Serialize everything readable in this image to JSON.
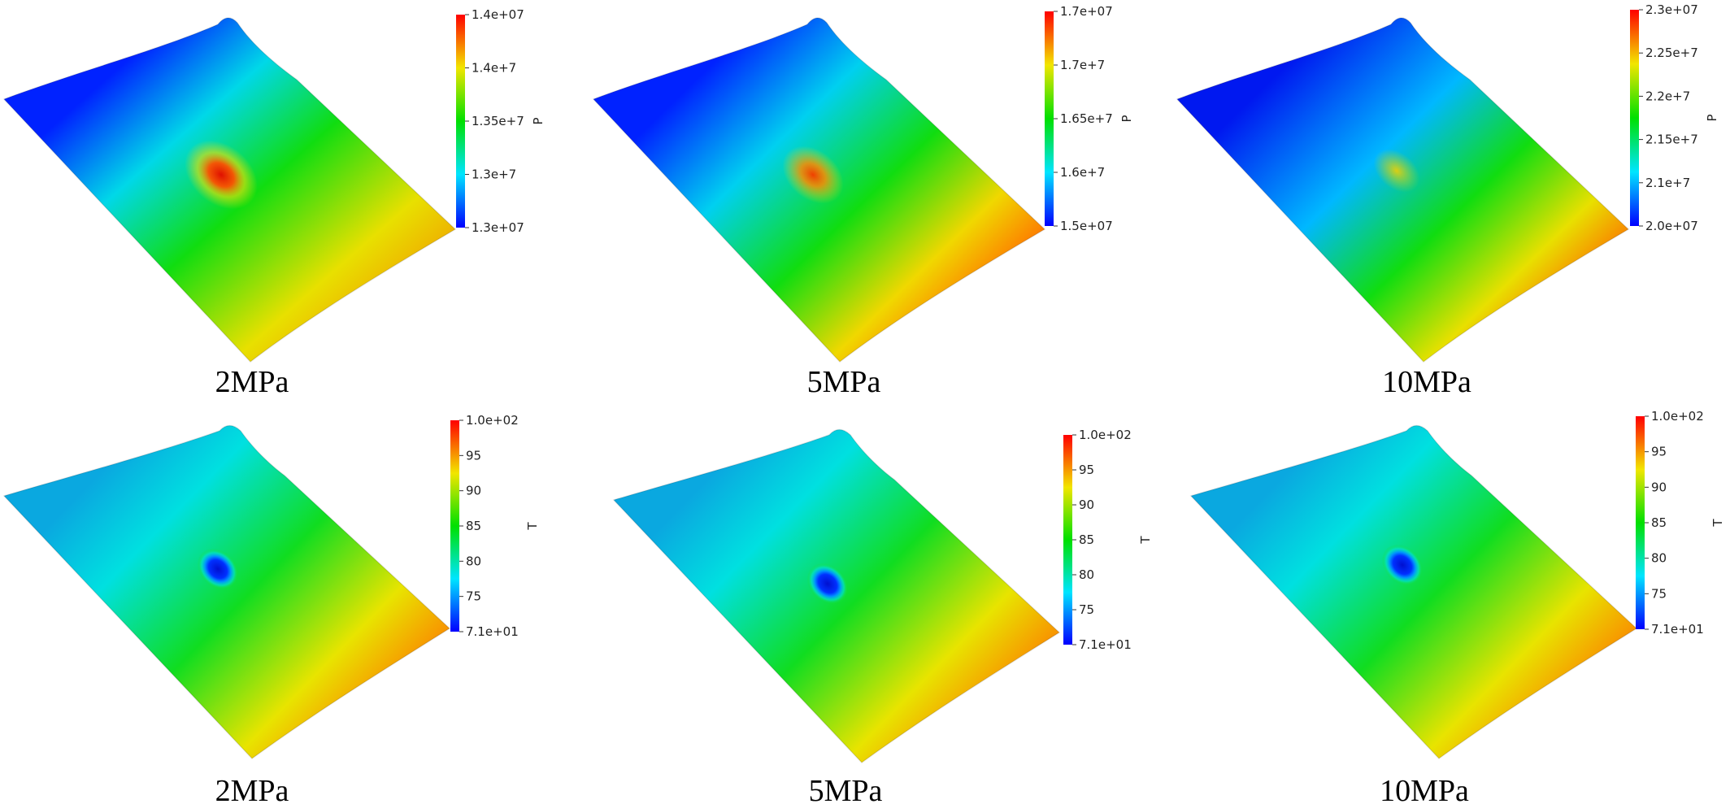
{
  "panels": [
    {
      "caption": "2MPa",
      "colorbar": {
        "title": "P",
        "ticks": [
          "1.4e+07",
          "1.4e+7",
          "1.35e+7",
          "1.3e+7",
          "1.3e+07"
        ]
      }
    },
    {
      "caption": "5MPa",
      "colorbar": {
        "title": "P",
        "ticks": [
          "1.7e+07",
          "1.7e+7",
          "1.65e+7",
          "1.6e+7",
          "1.5e+07"
        ]
      }
    },
    {
      "caption": "10MPa",
      "colorbar": {
        "title": "P",
        "ticks": [
          "2.3e+07",
          "2.25e+7",
          "2.2e+7",
          "2.15e+7",
          "2.1e+7",
          "2.0e+07"
        ]
      }
    },
    {
      "caption": "2MPa",
      "colorbar": {
        "title": "T",
        "ticks": [
          "1.0e+02",
          "95",
          "90",
          "85",
          "80",
          "75",
          "7.1e+01"
        ]
      }
    },
    {
      "caption": "5MPa",
      "colorbar": {
        "title": "T",
        "ticks": [
          "1.0e+02",
          "95",
          "90",
          "85",
          "80",
          "75",
          "7.1e+01"
        ]
      }
    },
    {
      "caption": "10MPa",
      "colorbar": {
        "title": "T",
        "ticks": [
          "1.0e+02",
          "95",
          "90",
          "85",
          "80",
          "75",
          "7.1e+01"
        ]
      }
    }
  ],
  "colors": {
    "low": "#0000ff",
    "cyan": "#00e5ff",
    "green": "#00e000",
    "yellow": "#f2e600",
    "high": "#ff0000"
  }
}
